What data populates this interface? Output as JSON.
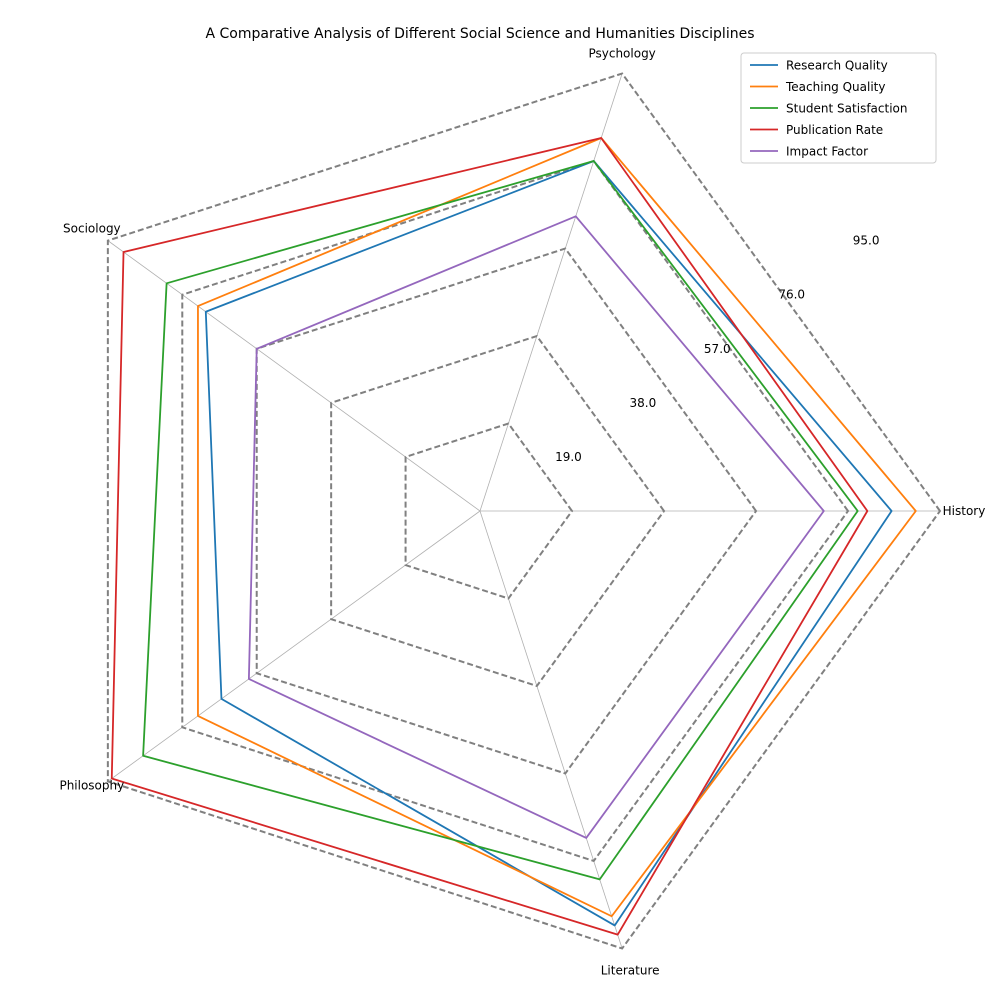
{
  "chart_data": {
    "type": "radar",
    "title": "A Comparative Analysis of Different Social Science and Humanities Disciplines",
    "categories": [
      "History",
      "Psychology",
      "Sociology",
      "Philosophy",
      "Literature"
    ],
    "rmax": 95,
    "ticks": [
      19.0,
      38.0,
      57.0,
      76.0,
      95.0
    ],
    "tick_labels": [
      "19.0",
      "38.0",
      "57.0",
      "76.0",
      "95.0"
    ],
    "grid": true,
    "legend_position": "top-right",
    "series": [
      {
        "name": " Research Quality",
        "color": "#1f77b4",
        "values": [
          85,
          76,
          70,
          66,
          90
        ]
      },
      {
        "name": " Teaching Quality",
        "color": "#ff7f0e",
        "values": [
          90,
          81,
          72,
          72,
          88
        ]
      },
      {
        "name": " Student Satisfaction",
        "color": "#2ca02c",
        "values": [
          78,
          76,
          80,
          86,
          80
        ]
      },
      {
        "name": " Publication Rate",
        "color": "#d62728",
        "values": [
          80,
          81,
          91,
          94,
          92
        ]
      },
      {
        "name": " Impact Factor",
        "color": "#9467bd",
        "values": [
          71,
          64,
          57,
          59,
          71
        ]
      }
    ]
  }
}
